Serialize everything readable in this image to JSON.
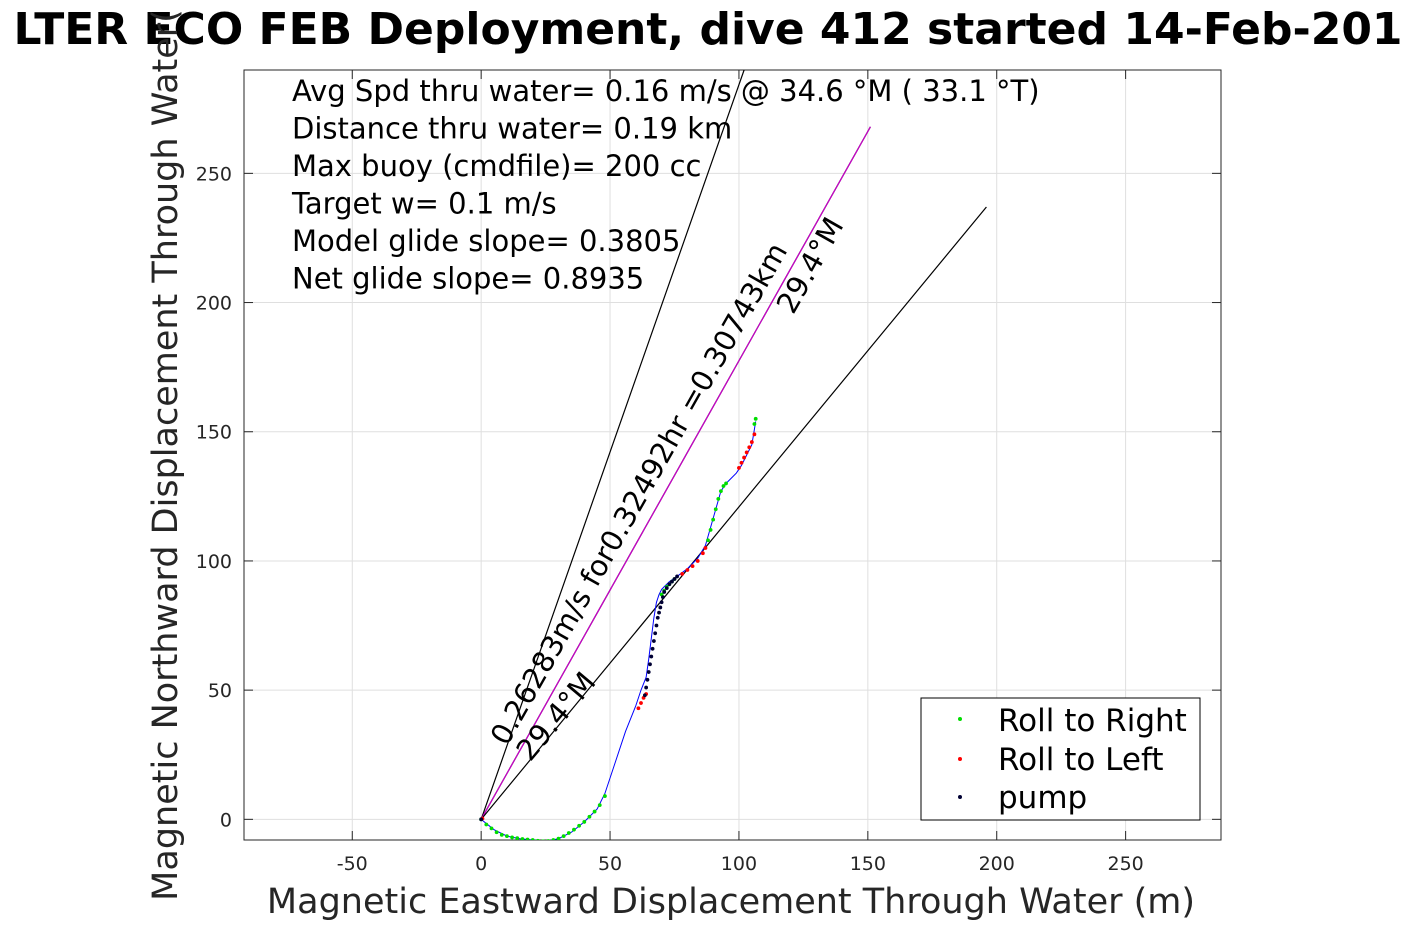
{
  "chart_data": {
    "type": "scatter",
    "title": "LTER ECO FEB Deployment, dive 412 started 14-Feb-201",
    "xlabel": "Magnetic Eastward Displacement Through Water (m)",
    "ylabel": "Magnetic Northward Displacement Through Water(",
    "xlim": [
      -92,
      287
    ],
    "ylim": [
      -8,
      290
    ],
    "xticks": [
      -50,
      0,
      50,
      100,
      150,
      200,
      250
    ],
    "yticks": [
      0,
      50,
      100,
      150,
      200,
      250
    ],
    "grid": true,
    "info_lines": [
      "Avg Spd thru water=  0.16 m/s @  34.6 °M ( 33.1 °T)",
      "Distance thru water=  0.19 km",
      "Max buoy (cmdfile)= 200 cc",
      "Target w= 0.1 m/s",
      "Model glide slope= 0.3805",
      "Net glide slope= 0.8935"
    ],
    "reference_lines": [
      {
        "x": [
          0,
          102
        ],
        "y": [
          0,
          290
        ],
        "color": "#000000"
      },
      {
        "x": [
          0,
          151
        ],
        "y": [
          0,
          268
        ],
        "color": "#000000"
      },
      {
        "x": [
          0,
          151
        ],
        "y": [
          0,
          268
        ],
        "color": "#cc00cc"
      },
      {
        "x": [
          0,
          196
        ],
        "y": [
          0,
          237
        ],
        "color": "#000000"
      }
    ],
    "annotations": [
      {
        "text": "0.26283m/s for0.32492hr =0.30743km",
        "x": 10,
        "y": 28,
        "angle": -60.5
      },
      {
        "text": "29.4°M",
        "x": 121,
        "y": 195,
        "angle": -60.5
      },
      {
        "text": "29.4°M",
        "x": 19,
        "y": 22,
        "angle": -50
      }
    ],
    "track": {
      "x": [
        0,
        5,
        10,
        15,
        20,
        25,
        30,
        35,
        40,
        45,
        48,
        52,
        56,
        60,
        62,
        64,
        65,
        66,
        67,
        68,
        69,
        70,
        71,
        73,
        76,
        80,
        84,
        87,
        89,
        91,
        93,
        95,
        97,
        99,
        101,
        103,
        105,
        106.5
      ],
      "y": [
        0,
        -4,
        -6.5,
        -7.5,
        -8,
        -8.5,
        -7.5,
        -5,
        -1,
        4,
        10,
        22,
        34,
        44,
        50,
        55,
        62,
        70,
        78,
        84,
        87,
        89,
        90,
        92,
        94,
        97,
        101,
        106,
        113,
        120,
        127,
        130,
        132,
        134,
        137,
        141,
        145,
        154
      ]
    },
    "series": [
      {
        "name": "Roll to Right",
        "color": "#00dd00",
        "x": [
          0,
          2,
          4,
          6,
          8,
          10,
          12,
          14,
          16,
          18,
          20,
          22,
          24,
          26,
          28,
          30,
          32,
          34,
          36,
          38,
          40,
          42,
          44,
          46,
          48,
          70,
          71,
          72,
          73,
          74,
          75,
          88,
          89,
          90,
          91,
          92,
          93,
          94,
          95,
          106,
          106.5
        ],
        "y": [
          0,
          -2,
          -3.5,
          -5,
          -6,
          -6.5,
          -7,
          -7.3,
          -7.6,
          -7.8,
          -8,
          -8.3,
          -8.5,
          -8.4,
          -8,
          -7.5,
          -6.5,
          -5.3,
          -4,
          -2.5,
          -1,
          1,
          3,
          5.5,
          9,
          87,
          88.5,
          90,
          91,
          92,
          93,
          108,
          112,
          116,
          120,
          124,
          127,
          129,
          130,
          153,
          155
        ]
      },
      {
        "name": "Roll to Left",
        "color": "#ff0000",
        "x": [
          0.5,
          61,
          62,
          63,
          64,
          78,
          80,
          82,
          84,
          86,
          87,
          100,
          101,
          102,
          103,
          104,
          105,
          106
        ],
        "y": [
          0.3,
          43,
          45,
          47,
          48.5,
          95,
          96.5,
          98,
          100,
          103,
          105,
          136,
          138,
          140,
          142,
          144,
          146,
          149
        ]
      },
      {
        "name": "pump",
        "color": "#000033",
        "x": [
          0,
          63.5,
          64,
          64.5,
          65,
          65.5,
          66,
          66.5,
          67,
          67.5,
          68,
          68.5,
          69,
          69.5,
          70,
          70.5,
          71,
          72,
          73,
          74,
          75,
          76
        ],
        "y": [
          0,
          48,
          51,
          54,
          57,
          60,
          63,
          66,
          69,
          72,
          75,
          78,
          80,
          82,
          84,
          86,
          88,
          89.5,
          91,
          92,
          93,
          94
        ]
      }
    ],
    "legend_position": "bottom-right"
  }
}
